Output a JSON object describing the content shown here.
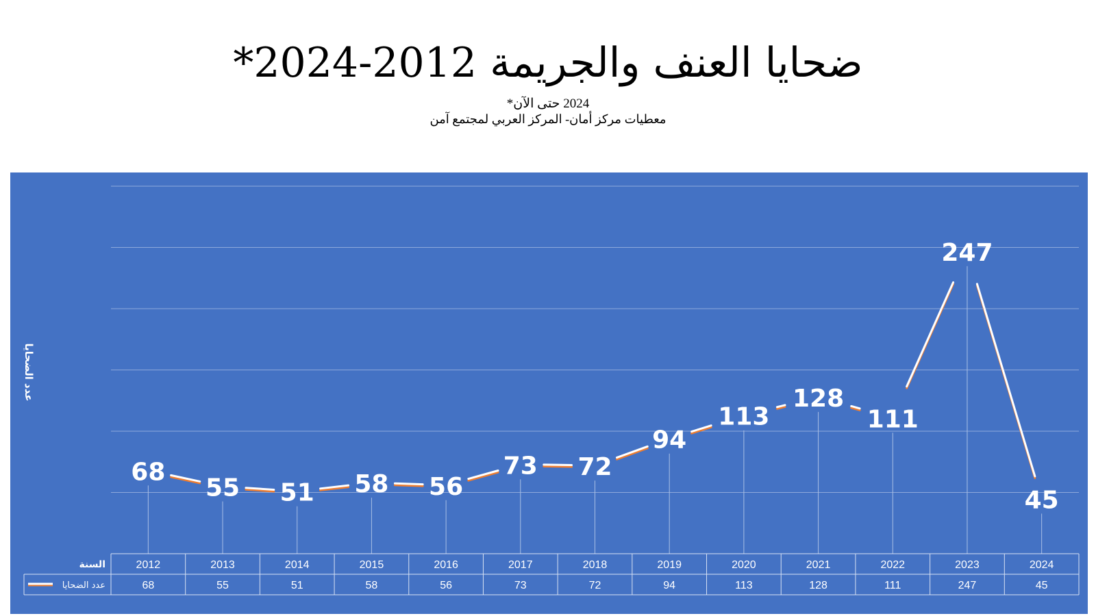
{
  "title": "ضحايا العنف والجريمة 2012-2024*",
  "subtitle_note": "2024 حتى الآن*",
  "subtitle_source": "معطيات مركز أمان- المركز العربي لمجتمع آمن",
  "colors": {
    "panel": "#4472C4",
    "line": "#FFFFFF",
    "line_shadow": "#ED7D31",
    "grid": "#8EA9DB"
  },
  "chart_data": {
    "type": "line",
    "categories": [
      "2012",
      "2013",
      "2014",
      "2015",
      "2016",
      "2017",
      "2018",
      "2019",
      "2020",
      "2021",
      "2022",
      "2023",
      "2024"
    ],
    "series": [
      {
        "name": "عدد الضحايا",
        "values": [
          68,
          55,
          51,
          58,
          56,
          73,
          72,
          94,
          113,
          128,
          111,
          247,
          45
        ]
      }
    ],
    "ylabel": "عدد الضحايا",
    "table_row_header_x": "السنة",
    "table_row_header_values": "عدد الضحايا",
    "ylim": [
      0,
      300
    ],
    "grid": true,
    "data_table": true
  }
}
